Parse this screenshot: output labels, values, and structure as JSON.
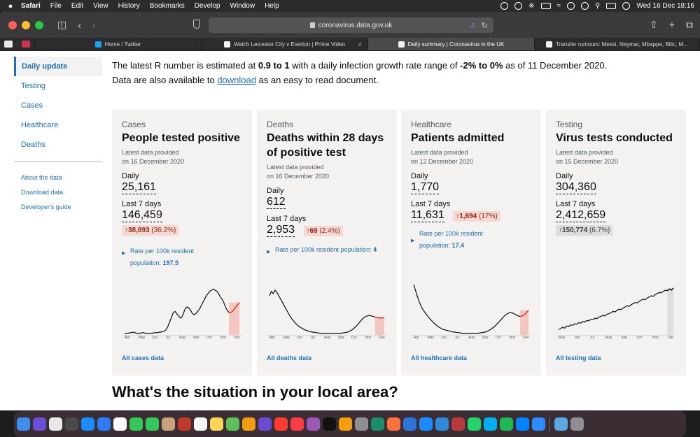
{
  "menubar": {
    "items": [
      "Safari",
      "File",
      "Edit",
      "View",
      "History",
      "Bookmarks",
      "Develop",
      "Window",
      "Help"
    ],
    "clock": "Wed 16 Dec  18:16"
  },
  "browser": {
    "url": "coronavirus.data.gov.uk",
    "tabs": [
      {
        "label": "Home / Twitter"
      },
      {
        "label": "Watch Leicester City v Everton | Prime Video"
      },
      {
        "label": "Daily summary | Coronavirus in the UK"
      },
      {
        "label": "Transfer rumours: Messi, Neymar, Mbappe, Bilic, M..."
      }
    ]
  },
  "nav": {
    "items": [
      "Daily update",
      "Testing",
      "Cases",
      "Healthcare",
      "Deaths"
    ],
    "sub_items": [
      "About the data",
      "Download data",
      "Developer's guide"
    ]
  },
  "intro": {
    "p1_a": "The latest R number is estimated at ",
    "r_range": "0.9 to 1",
    "p1_b": " with a daily infection growth rate range of ",
    "growth_range": "-2% to 0%",
    "p1_c": " as of 11 December 2020.",
    "p2_a": "Data are also available to ",
    "p2_link": "download",
    "p2_b": " as an easy to read document."
  },
  "cards": [
    {
      "category": "Cases",
      "title": "People tested positive",
      "provided_a": "Latest data provided",
      "provided_b": "on 16 December 2020",
      "daily_label": "Daily",
      "daily": "25,161",
      "week_label": "Last 7 days",
      "week": "146,459",
      "change_arrow": "↑",
      "change": "38,893",
      "change_pct": "(36.2%)",
      "rate_a": "Rate per 100k resident",
      "rate_b": "population: ",
      "rate_value": "197.5",
      "months": [
        "Apr",
        "May",
        "Jun",
        "Jul",
        "Aug",
        "Sep",
        "Oct",
        "Nov",
        "Dec"
      ],
      "series": [
        2,
        3,
        3,
        4,
        4,
        5,
        4,
        3,
        3,
        3,
        4,
        4,
        3,
        3,
        3,
        3,
        3,
        4,
        4,
        4,
        5,
        5,
        6,
        7,
        10,
        16,
        24,
        32,
        40,
        42,
        38,
        34,
        30,
        32,
        40,
        48,
        50,
        48,
        44,
        38,
        36,
        38,
        42,
        46,
        52,
        58,
        64,
        70,
        74,
        78,
        80,
        82,
        80,
        78,
        74,
        68,
        64,
        58,
        50,
        44,
        40,
        40,
        42,
        46,
        50,
        54,
        58
      ],
      "max": 100,
      "highlight_start": 60,
      "link": "All cases data"
    },
    {
      "category": "Deaths",
      "title": "Deaths within 28 days of positive test",
      "provided_a": "Latest data provided",
      "provided_b": "on 16 December 2020",
      "daily_label": "Daily",
      "daily": "612",
      "week_label": "Last 7 days",
      "week": "2,953",
      "change_arrow": "↑",
      "change": "69",
      "change_pct": "(2.4%)",
      "rate_a": "Rate per 100k resident population: ",
      "rate_value": "4",
      "months": [
        "Apr",
        "May",
        "Jun",
        "Jul",
        "Aug",
        "Sep",
        "Oct",
        "Nov",
        "Dec"
      ],
      "series": [
        70,
        78,
        74,
        80,
        76,
        70,
        64,
        58,
        52,
        46,
        40,
        34,
        29,
        25,
        21,
        18,
        15,
        13,
        11,
        9,
        8,
        7,
        6,
        5,
        5,
        4,
        4,
        3,
        3,
        3,
        3,
        3,
        3,
        3,
        3,
        3,
        3,
        3,
        3,
        3,
        4,
        4,
        5,
        6,
        8,
        10,
        13,
        16,
        20,
        24,
        28,
        31,
        33,
        34,
        35,
        34,
        33,
        32,
        31,
        31,
        30,
        31,
        30
      ],
      "max": 100,
      "highlight_start": 57,
      "link": "All deaths data"
    },
    {
      "category": "Healthcare",
      "title": "Patients admitted",
      "provided_a": "Latest data provided",
      "provided_b": "on 12 December 2020",
      "daily_label": "Daily",
      "daily": "1,770",
      "week_label": "Last 7 days",
      "week": "11,631",
      "change_arrow": "↑",
      "change": "1,694",
      "change_pct": "(17%)",
      "rate_a": "Rate per 100k resident",
      "rate_b": "population: ",
      "rate_value": "17.4",
      "months": [
        "Apr",
        "May",
        "Jun",
        "Jul",
        "Aug",
        "Sep",
        "Oct",
        "Nov",
        "Dec"
      ],
      "series": [
        90,
        78,
        66,
        56,
        48,
        42,
        37,
        32,
        28,
        24,
        20,
        17,
        14,
        12,
        10,
        9,
        8,
        7,
        6,
        5,
        5,
        4,
        4,
        3,
        3,
        3,
        3,
        3,
        3,
        3,
        3,
        3,
        4,
        4,
        5,
        6,
        8,
        10,
        13,
        16,
        20,
        24,
        28,
        32,
        36,
        38,
        40,
        40,
        38,
        36,
        34,
        33,
        34,
        36,
        40,
        44
      ],
      "max": 100,
      "highlight_start": 51,
      "link": "All healthcare data"
    },
    {
      "category": "Testing",
      "title": "Virus tests conducted",
      "provided_a": "Latest data provided",
      "provided_b": "on 15 December 2020",
      "daily_label": "Daily",
      "daily": "304,360",
      "week_label": "Last 7 days",
      "week": "2,412,659",
      "change_arrow": "↑",
      "change": "150,774",
      "change_pct": "(6.7%)",
      "months": [
        "May",
        "Jun",
        "Jul",
        "Aug",
        "Sep",
        "Oct",
        "Nov",
        "Dec"
      ],
      "series": [
        10,
        11,
        14,
        12,
        16,
        15,
        18,
        17,
        20,
        19,
        22,
        21,
        24,
        23,
        26,
        25,
        28,
        27,
        30,
        29,
        32,
        33,
        35,
        34,
        37,
        38,
        40,
        42,
        41,
        44,
        46,
        45,
        48,
        50,
        52,
        51,
        54,
        56,
        58,
        57,
        60,
        62,
        64,
        63,
        66,
        68,
        70,
        69,
        72,
        74,
        76,
        75,
        78,
        80,
        79,
        82,
        80,
        84
      ],
      "max": 100,
      "highlight_start": 54,
      "link": "All testing data"
    }
  ],
  "local_heading": "What's the situation in your local area?",
  "colors": {
    "link": "#1d70b8",
    "card_bg": "#f3f2f1",
    "increase_bg": "#f6d7d2",
    "increase_text": "#942514",
    "highlight_fill": "#f4c6c0",
    "highlight_line": "#d4351c",
    "testing_highlight": "#dedede"
  },
  "dock": {
    "apps": [
      "finder",
      "siri",
      "launchpad",
      "mission-control",
      "app-store",
      "mail",
      "calendar",
      "messages",
      "facetime",
      "contacts",
      "photo-booth",
      "reminders",
      "notes",
      "maps",
      "photos",
      "imovie",
      "news",
      "music",
      "podcasts",
      "tv",
      "books",
      "system-preferences",
      "time-machine",
      "firefox",
      "1password",
      "safari",
      "edge",
      "transmission",
      "whatsapp",
      "skype",
      "spotify",
      "messenger",
      "zoom",
      "downloads",
      "trash"
    ]
  }
}
